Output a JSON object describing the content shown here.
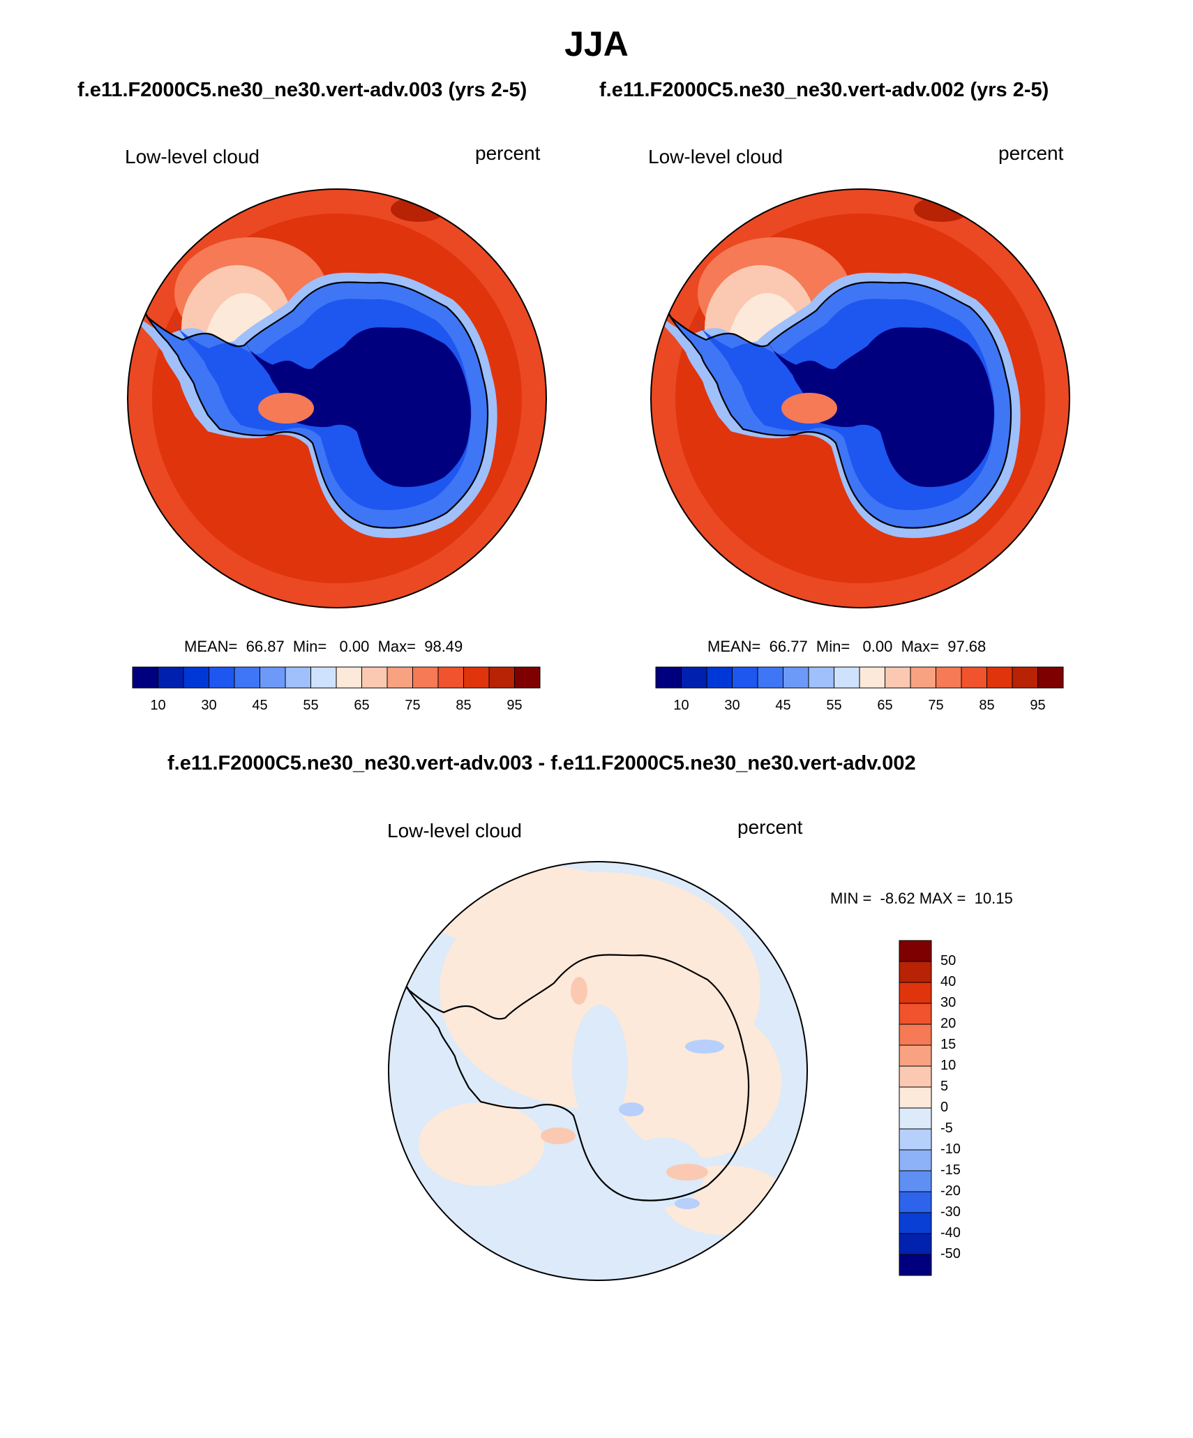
{
  "title": "JJA",
  "subtitles": {
    "left": "f.e11.F2000C5.ne30_ne30.vert-adv.003 (yrs 2-5)",
    "right": "f.e11.F2000C5.ne30_ne30.vert-adv.002 (yrs 2-5)",
    "diff": "f.e11.F2000C5.ne30_ne30.vert-adv.003 - f.e11.F2000C5.ne30_ne30.vert-adv.002"
  },
  "panels": [
    {
      "id": "left",
      "variable": "Low-level cloud",
      "units": "percent",
      "stats_text": "MEAN=  66.87  Min=   0.00  Max=  98.49",
      "mean": 66.87,
      "min": 0.0,
      "max": 98.49
    },
    {
      "id": "right",
      "variable": "Low-level cloud",
      "units": "percent",
      "stats_text": "MEAN=  66.77  Min=   0.00  Max=  97.68",
      "mean": 66.77,
      "min": 0.0,
      "max": 97.68
    },
    {
      "id": "diff",
      "variable": "Low-level cloud",
      "units": "percent",
      "stats_text": "MIN =  -8.62 MAX =  10.15",
      "min": -8.62,
      "max": 10.15
    }
  ],
  "colorbar_main": {
    "colors": [
      "#00007f",
      "#0020b0",
      "#0038d8",
      "#1e56f0",
      "#3f76f5",
      "#6d9af8",
      "#9fc0fb",
      "#cfe2fd",
      "#fde9d9",
      "#fbc9b1",
      "#f8a282",
      "#f57a55",
      "#f0532d",
      "#e0340d",
      "#b82205",
      "#7f0000"
    ],
    "tick_labels": [
      "10",
      "30",
      "45",
      "55",
      "65",
      "75",
      "85",
      "95"
    ]
  },
  "colorbar_diff": {
    "colors": [
      "#7f0000",
      "#b82205",
      "#e0340d",
      "#f0532d",
      "#f57a55",
      "#f8a282",
      "#fbc9b1",
      "#fde9d9",
      "#dceaf9",
      "#b6d0fb",
      "#8eb2f8",
      "#5f8ff3",
      "#2e63ec",
      "#0a3fd6",
      "#0022ae",
      "#00007f"
    ],
    "tick_labels": [
      "50",
      "40",
      "30",
      "20",
      "15",
      "10",
      "5",
      "0",
      "-5",
      "-10",
      "-15",
      "-20",
      "-30",
      "-40",
      "-50"
    ]
  }
}
